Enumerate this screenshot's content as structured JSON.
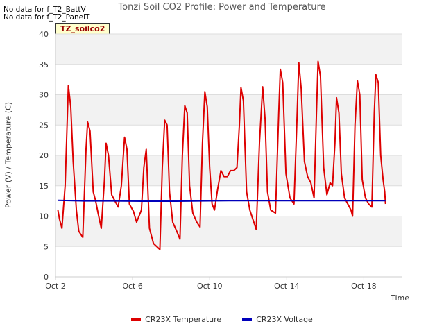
{
  "notices": [
    "No data for f_T2_BattV",
    "No data for f_T2_PanelT"
  ],
  "badge": "TZ_soilco2",
  "chart_data": {
    "type": "line",
    "title": "Tonzi Soil CO2 Profile: Power and Temperature",
    "xlabel": "Time",
    "ylabel": "Power (V) / Temperature (C)",
    "ylim": [
      0,
      40
    ],
    "xlim": [
      "2024-10-02",
      "2024-10-20"
    ],
    "xtick_labels": [
      "Oct 2",
      "Oct 6",
      "Oct 10",
      "Oct 14",
      "Oct 18"
    ],
    "yticks": [
      0,
      5,
      10,
      15,
      20,
      25,
      30,
      35,
      40
    ],
    "grid": true,
    "legend_position": "bottom",
    "series": [
      {
        "name": "CR23X Temperature",
        "color": "#dd0000",
        "points": [
          [
            "2024-10-02 03:00",
            11.0
          ],
          [
            "2024-10-02 05:00",
            9.5
          ],
          [
            "2024-10-02 08:00",
            8.0
          ],
          [
            "2024-10-02 12:00",
            15.0
          ],
          [
            "2024-10-02 16:00",
            31.5
          ],
          [
            "2024-10-02 19:00",
            28.0
          ],
          [
            "2024-10-02 22:00",
            19.0
          ],
          [
            "2024-10-03 02:00",
            11.0
          ],
          [
            "2024-10-03 05:00",
            7.5
          ],
          [
            "2024-10-03 10:00",
            6.5
          ],
          [
            "2024-10-03 14:00",
            21.0
          ],
          [
            "2024-10-03 16:00",
            25.5
          ],
          [
            "2024-10-03 19:00",
            24.0
          ],
          [
            "2024-10-03 23:00",
            14.0
          ],
          [
            "2024-10-04 02:00",
            12.5
          ],
          [
            "2024-10-04 05:00",
            10.5
          ],
          [
            "2024-10-04 09:00",
            8.0
          ],
          [
            "2024-10-04 13:00",
            16.0
          ],
          [
            "2024-10-04 15:00",
            22.0
          ],
          [
            "2024-10-04 18:00",
            20.0
          ],
          [
            "2024-10-04 22:00",
            13.5
          ],
          [
            "2024-10-05 02:00",
            12.5
          ],
          [
            "2024-10-05 06:00",
            11.5
          ],
          [
            "2024-10-05 10:00",
            15.0
          ],
          [
            "2024-10-05 14:00",
            23.0
          ],
          [
            "2024-10-05 17:00",
            21.0
          ],
          [
            "2024-10-05 20:00",
            12.0
          ],
          [
            "2024-10-06 01:00",
            10.8
          ],
          [
            "2024-10-06 05:00",
            9.0
          ],
          [
            "2024-10-06 08:00",
            10.0
          ],
          [
            "2024-10-06 11:00",
            11.0
          ],
          [
            "2024-10-06 14:00",
            18.0
          ],
          [
            "2024-10-06 17:00",
            21.0
          ],
          [
            "2024-10-06 21:00",
            8.0
          ],
          [
            "2024-10-07 02:00",
            5.5
          ],
          [
            "2024-10-07 06:00",
            5.0
          ],
          [
            "2024-10-07 10:00",
            4.5
          ],
          [
            "2024-10-07 13:00",
            18.0
          ],
          [
            "2024-10-07 16:00",
            25.8
          ],
          [
            "2024-10-07 19:00",
            25.0
          ],
          [
            "2024-10-07 22:00",
            14.0
          ],
          [
            "2024-10-08 02:00",
            9.0
          ],
          [
            "2024-10-08 07:00",
            7.5
          ],
          [
            "2024-10-08 11:00",
            6.2
          ],
          [
            "2024-10-08 14:00",
            20.0
          ],
          [
            "2024-10-08 17:00",
            28.2
          ],
          [
            "2024-10-08 20:00",
            27.0
          ],
          [
            "2024-10-08 23:00",
            15.0
          ],
          [
            "2024-10-09 03:00",
            10.5
          ],
          [
            "2024-10-09 08:00",
            9.0
          ],
          [
            "2024-10-09 12:00",
            8.2
          ],
          [
            "2024-10-09 15:00",
            22.0
          ],
          [
            "2024-10-09 18:00",
            30.5
          ],
          [
            "2024-10-09 21:00",
            28.0
          ],
          [
            "2024-10-10 00:00",
            18.0
          ],
          [
            "2024-10-10 03:00",
            12.0
          ],
          [
            "2024-10-10 06:00",
            11.0
          ],
          [
            "2024-10-10 10:00",
            14.5
          ],
          [
            "2024-10-10 14:00",
            17.5
          ],
          [
            "2024-10-10 18:00",
            16.5
          ],
          [
            "2024-10-10 22:00",
            16.5
          ],
          [
            "2024-10-11 02:00",
            17.5
          ],
          [
            "2024-10-11 06:00",
            17.5
          ],
          [
            "2024-10-11 10:00",
            18.0
          ],
          [
            "2024-10-11 13:00",
            25.0
          ],
          [
            "2024-10-11 15:00",
            31.2
          ],
          [
            "2024-10-11 18:00",
            29.0
          ],
          [
            "2024-10-11 22:00",
            14.0
          ],
          [
            "2024-10-12 02:00",
            11.0
          ],
          [
            "2024-10-12 07:00",
            9.0
          ],
          [
            "2024-10-12 10:00",
            7.8
          ],
          [
            "2024-10-12 14:00",
            22.0
          ],
          [
            "2024-10-12 18:00",
            31.3
          ],
          [
            "2024-10-12 21:00",
            26.0
          ],
          [
            "2024-10-13 00:00",
            14.0
          ],
          [
            "2024-10-13 04:00",
            11.0
          ],
          [
            "2024-10-13 10:00",
            10.5
          ],
          [
            "2024-10-13 14:00",
            27.0
          ],
          [
            "2024-10-13 16:00",
            34.2
          ],
          [
            "2024-10-13 19:00",
            32.0
          ],
          [
            "2024-10-13 23:00",
            17.0
          ],
          [
            "2024-10-14 04:00",
            13.0
          ],
          [
            "2024-10-14 09:00",
            12.0
          ],
          [
            "2024-10-14 13:00",
            27.0
          ],
          [
            "2024-10-14 15:00",
            35.3
          ],
          [
            "2024-10-14 18:00",
            31.0
          ],
          [
            "2024-10-14 22:00",
            19.0
          ],
          [
            "2024-10-15 02:00",
            16.5
          ],
          [
            "2024-10-15 06:00",
            15.5
          ],
          [
            "2024-10-15 10:00",
            13.0
          ],
          [
            "2024-10-15 13:00",
            27.0
          ],
          [
            "2024-10-15 15:00",
            35.5
          ],
          [
            "2024-10-15 18:00",
            33.0
          ],
          [
            "2024-10-15 22:00",
            18.0
          ],
          [
            "2024-10-16 02:00",
            13.5
          ],
          [
            "2024-10-16 06:00",
            15.5
          ],
          [
            "2024-10-16 09:00",
            15.0
          ],
          [
            "2024-10-16 12:00",
            22.0
          ],
          [
            "2024-10-16 14:00",
            29.5
          ],
          [
            "2024-10-16 17:00",
            27.0
          ],
          [
            "2024-10-16 20:00",
            17.0
          ],
          [
            "2024-10-17 00:00",
            13.0
          ],
          [
            "2024-10-17 04:00",
            12.0
          ],
          [
            "2024-10-17 08:00",
            11.0
          ],
          [
            "2024-10-17 10:00",
            10.0
          ],
          [
            "2024-10-17 13:00",
            25.0
          ],
          [
            "2024-10-17 16:00",
            32.3
          ],
          [
            "2024-10-17 19:00",
            30.0
          ],
          [
            "2024-10-17 22:00",
            16.0
          ],
          [
            "2024-10-18 02:00",
            13.0
          ],
          [
            "2024-10-18 06:00",
            12.0
          ],
          [
            "2024-10-18 10:00",
            11.5
          ],
          [
            "2024-10-18 13:00",
            27.0
          ],
          [
            "2024-10-18 15:00",
            33.3
          ],
          [
            "2024-10-18 18:00",
            32.0
          ],
          [
            "2024-10-18 21:00",
            20.0
          ],
          [
            "2024-10-19 00:00",
            16.0
          ],
          [
            "2024-10-19 02:00",
            14.0
          ],
          [
            "2024-10-19 03:00",
            12.0
          ]
        ]
      },
      {
        "name": "CR23X Voltage",
        "color": "#0000bb",
        "points": [
          [
            "2024-10-02 03:00",
            12.6
          ],
          [
            "2024-10-03 12:00",
            12.5
          ],
          [
            "2024-10-05 00:00",
            12.5
          ],
          [
            "2024-10-06 12:00",
            12.45
          ],
          [
            "2024-10-08 00:00",
            12.45
          ],
          [
            "2024-10-09 12:00",
            12.5
          ],
          [
            "2024-10-11 00:00",
            12.55
          ],
          [
            "2024-10-13 00:00",
            12.55
          ],
          [
            "2024-10-15 00:00",
            12.55
          ],
          [
            "2024-10-17 00:00",
            12.55
          ],
          [
            "2024-10-19 03:00",
            12.55
          ]
        ]
      }
    ]
  }
}
